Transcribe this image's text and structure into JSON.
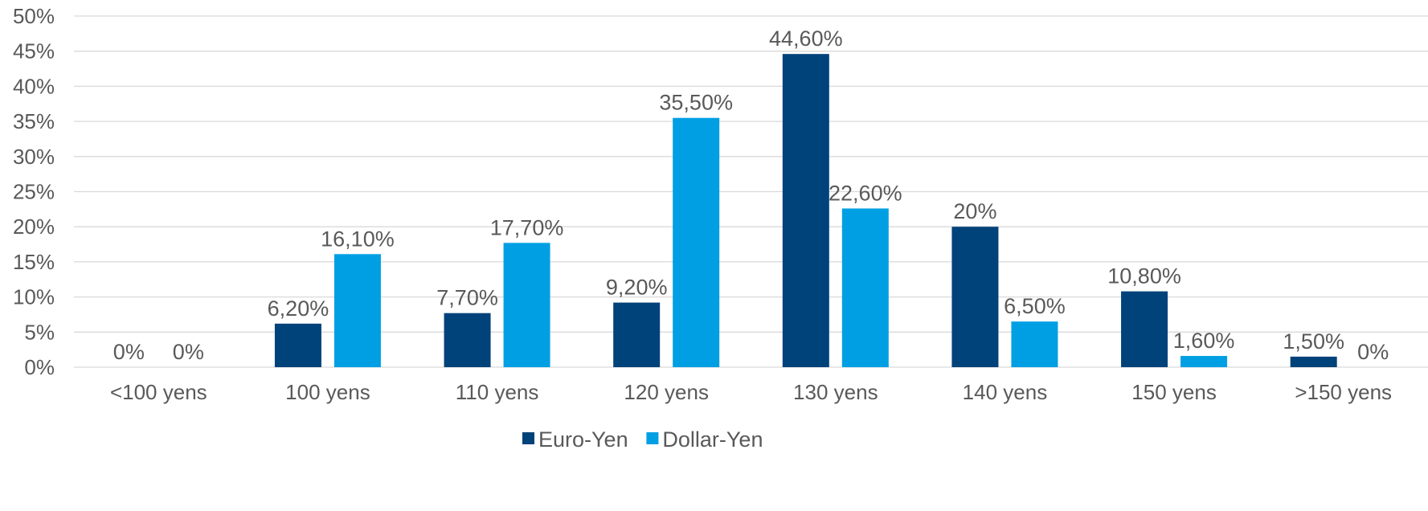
{
  "chart_data": {
    "type": "bar",
    "categories": [
      "<100 yens",
      "100 yens",
      "110 yens",
      "120 yens",
      "130 yens",
      "140 yens",
      "150 yens",
      ">150 yens"
    ],
    "series": [
      {
        "name": "Euro-Yen",
        "color": "#00427a",
        "values": [
          0,
          6.2,
          7.7,
          9.2,
          44.6,
          20,
          10.8,
          1.5
        ],
        "labels": [
          "0%",
          "6,20%",
          "7,70%",
          "9,20%",
          "44,60%",
          "20%",
          "10,80%",
          "1,50%"
        ]
      },
      {
        "name": "Dollar-Yen",
        "color": "#009fe3",
        "values": [
          0,
          16.1,
          17.7,
          35.5,
          22.6,
          6.5,
          1.6,
          0
        ],
        "labels": [
          "0%",
          "16,10%",
          "17,70%",
          "35,50%",
          "22,60%",
          "6,50%",
          "1,60%",
          "0%"
        ]
      }
    ],
    "ylim": [
      0,
      50
    ],
    "yticks": [
      0,
      5,
      10,
      15,
      20,
      25,
      30,
      35,
      40,
      45,
      50
    ],
    "ytick_labels": [
      "0%",
      "5%",
      "10%",
      "15%",
      "20%",
      "25%",
      "30%",
      "35%",
      "40%",
      "45%",
      "50%"
    ],
    "grid": true,
    "legend": "bottom-center",
    "title": "",
    "xlabel": "",
    "ylabel": ""
  }
}
